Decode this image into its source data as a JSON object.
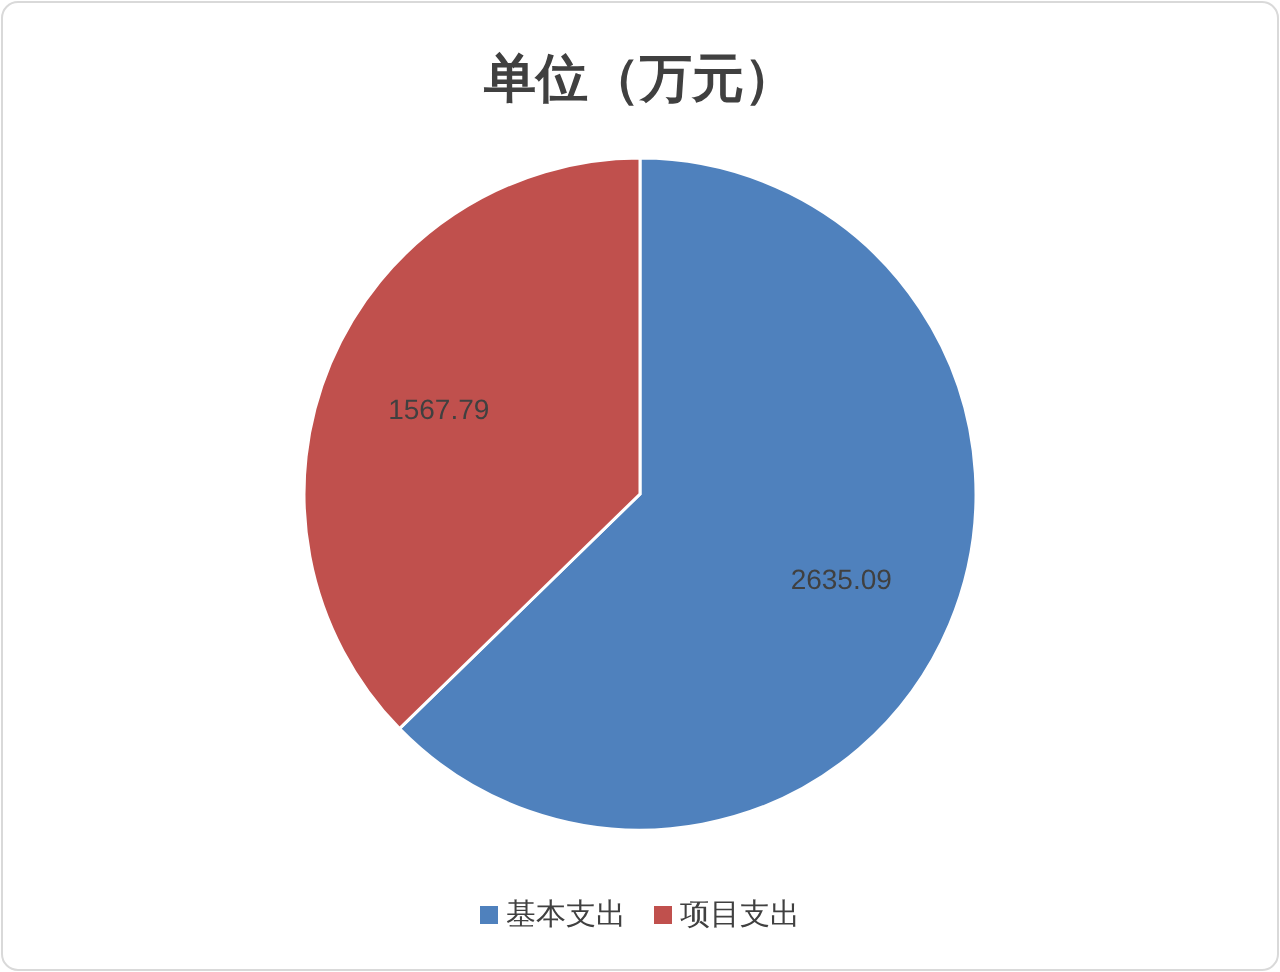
{
  "chart_data": {
    "type": "pie",
    "title": "单位（万元）",
    "categories": [
      "基本支出",
      "项目支出"
    ],
    "values": [
      2635.09,
      1567.79
    ],
    "colors": [
      "#4f81bd",
      "#c0504d"
    ],
    "data_labels": true,
    "legend": "bottom"
  }
}
